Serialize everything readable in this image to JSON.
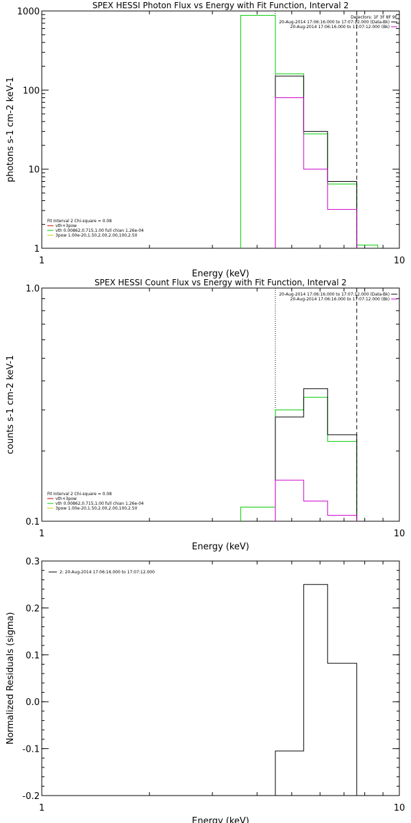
{
  "chart_data": [
    {
      "type": "line",
      "title": "SPEX HESSI Photon Flux vs Energy with Fit Function, Interval 2",
      "xlabel": "Energy (keV)",
      "ylabel": "photons s-1 cm-2 keV-1",
      "xscale": "log",
      "yscale": "log",
      "xlim": [
        1,
        10
      ],
      "ylim": [
        1,
        1000
      ],
      "x_ticks": [
        "1",
        "10"
      ],
      "y_ticks": [
        {
          "v": 1,
          "label": "1"
        },
        {
          "v": 10,
          "label": "10"
        },
        {
          "v": 100,
          "label": "100"
        },
        {
          "v": 1000,
          "label": "1000"
        }
      ],
      "vlines": [
        {
          "x": 4.5,
          "style": "dotted"
        },
        {
          "x": 7.6,
          "style": "dashed"
        }
      ],
      "legend_right": {
        "header": "Detectors: 1F 3F 8F 9F",
        "entries": [
          {
            "text": "20-Aug-2014 17:06:16.000 to 17:07:12.000 (Data-Bk)",
            "color": "#000000"
          },
          {
            "text": "20-Aug-2014 17:06:16.000 to 17:07:12.000 (Bk)",
            "color": "#cc00cc"
          }
        ]
      },
      "legend_left": {
        "header": "Fit Interval 2   Chi-square = 0.08",
        "entries": [
          {
            "text": "vth+3pow",
            "color": "#cc0000"
          },
          {
            "text": "vth 0.00862,0.715,1.00  full chian 1.26e-04",
            "color": "#00cc00"
          },
          {
            "text": "3pow 1.00e-20,1.50,2.00,2.00,100,2.50",
            "color": "#cccc00"
          }
        ]
      },
      "series": [
        {
          "color": "#00cc00",
          "edges": [
            3.6,
            4.5,
            5.4,
            6.3,
            7.6,
            8.7
          ],
          "values": [
            880,
            160,
            28,
            6.5,
            1.1
          ]
        },
        {
          "color": "#000000",
          "edges": [
            4.5,
            5.4,
            6.3,
            7.6
          ],
          "values": [
            150,
            30,
            7.0
          ]
        },
        {
          "color": "#cc00cc",
          "edges": [
            4.5,
            5.4,
            6.3,
            7.6
          ],
          "values": [
            80,
            10,
            3.1
          ]
        }
      ]
    },
    {
      "type": "line",
      "title": "SPEX HESSI Count Flux vs Energy with Fit Function, Interval 2",
      "xlabel": "Energy (keV)",
      "ylabel": "counts s-1 cm-2 keV-1",
      "xscale": "log",
      "yscale": "log",
      "xlim": [
        1,
        10
      ],
      "ylim": [
        0.1,
        1.0
      ],
      "x_ticks": [
        "1",
        "10"
      ],
      "y_ticks": [
        {
          "v": 0.1,
          "label": "0.1"
        },
        {
          "v": 1.0,
          "label": "1.0"
        }
      ],
      "vlines": [
        {
          "x": 4.5,
          "style": "dotted"
        },
        {
          "x": 7.6,
          "style": "dashed"
        }
      ],
      "legend_right": {
        "entries": [
          {
            "text": "20-Aug-2014 17:06:16.000 to 17:07:12.000 (Data-Bk)",
            "color": "#000000"
          },
          {
            "text": "20-Aug-2014 17:06:16.000 to 17:07:12.000 (Bk)",
            "color": "#cc00cc"
          }
        ]
      },
      "legend_left": {
        "header": "Fit Interval 2   Chi-square = 0.08",
        "entries": [
          {
            "text": "vth+3pow",
            "color": "#cc0000"
          },
          {
            "text": "vth 0.00862,0.715,1.00  full chian 1.26e-04",
            "color": "#00cc00"
          },
          {
            "text": "3pow 1.00e-20,1.50,2.00,2.00,100,2.50",
            "color": "#cccc00"
          }
        ]
      },
      "series": [
        {
          "color": "#00cc00",
          "edges": [
            3.6,
            4.5,
            5.4,
            6.3,
            7.6
          ],
          "values": [
            0.115,
            0.3,
            0.34,
            0.22
          ]
        },
        {
          "color": "#000000",
          "edges": [
            4.5,
            5.4,
            6.3,
            7.6
          ],
          "values": [
            0.28,
            0.37,
            0.235
          ]
        },
        {
          "color": "#cc00cc",
          "edges": [
            4.5,
            5.4,
            6.3,
            7.6
          ],
          "values": [
            0.15,
            0.122,
            0.106
          ]
        }
      ]
    },
    {
      "type": "line",
      "title": "",
      "xlabel": "Energy (keV)",
      "ylabel": "Normalized Residuals (sigma)",
      "xscale": "log",
      "yscale": "linear",
      "xlim": [
        1,
        10
      ],
      "ylim": [
        -0.2,
        0.3
      ],
      "x_ticks": [
        "1",
        "10"
      ],
      "y_ticks": [
        {
          "v": 0.3,
          "label": "0.3"
        },
        {
          "v": 0.2,
          "label": "0.2"
        },
        {
          "v": 0.1,
          "label": "0.1"
        },
        {
          "v": 0.0,
          "label": "0.0"
        },
        {
          "v": -0.1,
          "label": "-0.1"
        },
        {
          "v": -0.2,
          "label": "-0.2"
        }
      ],
      "legend_right": null,
      "legend_top": {
        "entries": [
          {
            "text": "2: 20-Aug-2014 17:06:16.000 to 17:07:12.000",
            "color": "#000000"
          }
        ]
      },
      "series": [
        {
          "color": "#000000",
          "edges": [
            4.5,
            5.4,
            6.3,
            7.6
          ],
          "values": [
            -0.105,
            0.25,
            0.082
          ]
        }
      ]
    }
  ]
}
